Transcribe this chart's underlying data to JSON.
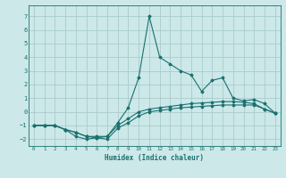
{
  "title": "",
  "xlabel": "Humidex (Indice chaleur)",
  "background_color": "#cce8e8",
  "grid_color": "#aacccc",
  "line_color": "#1a7070",
  "xlim": [
    -0.5,
    23.5
  ],
  "ylim": [
    -2.5,
    7.8
  ],
  "yticks": [
    -2,
    -1,
    0,
    1,
    2,
    3,
    4,
    5,
    6,
    7
  ],
  "xticks": [
    0,
    1,
    2,
    3,
    4,
    5,
    6,
    7,
    8,
    9,
    10,
    11,
    12,
    13,
    14,
    15,
    16,
    17,
    18,
    19,
    20,
    21,
    22,
    23
  ],
  "curves": [
    {
      "x": [
        0,
        1,
        2,
        3,
        4,
        5,
        6,
        7,
        8,
        9,
        10,
        11,
        12,
        13,
        14,
        15,
        16,
        17,
        18,
        19,
        20,
        21,
        22,
        23
      ],
      "y": [
        -1.0,
        -1.0,
        -1.0,
        -1.3,
        -1.5,
        -1.8,
        -1.8,
        -1.8,
        -0.8,
        0.3,
        2.5,
        7.0,
        4.0,
        3.5,
        3.0,
        2.7,
        1.5,
        2.3,
        2.5,
        1.0,
        0.8,
        0.9,
        0.6,
        -0.1
      ]
    },
    {
      "x": [
        0,
        1,
        2,
        3,
        4,
        5,
        6,
        7,
        8,
        9,
        10,
        11,
        12,
        13,
        14,
        15,
        16,
        17,
        18,
        19,
        20,
        21,
        22,
        23
      ],
      "y": [
        -1.0,
        -1.0,
        -1.0,
        -1.3,
        -1.8,
        -2.0,
        -1.9,
        -2.0,
        -1.2,
        -0.8,
        -0.3,
        0.0,
        0.1,
        0.2,
        0.3,
        0.35,
        0.4,
        0.45,
        0.5,
        0.5,
        0.5,
        0.5,
        0.2,
        -0.1
      ]
    },
    {
      "x": [
        0,
        1,
        2,
        3,
        4,
        5,
        6,
        7,
        8,
        9,
        10,
        11,
        12,
        13,
        14,
        15,
        16,
        17,
        18,
        19,
        20,
        21,
        22,
        23
      ],
      "y": [
        -1.0,
        -1.0,
        -1.0,
        -1.3,
        -1.5,
        -1.8,
        -1.9,
        -1.8,
        -1.0,
        -0.5,
        0.0,
        0.2,
        0.3,
        0.4,
        0.5,
        0.6,
        0.65,
        0.7,
        0.75,
        0.75,
        0.7,
        0.6,
        0.2,
        -0.1
      ]
    }
  ]
}
